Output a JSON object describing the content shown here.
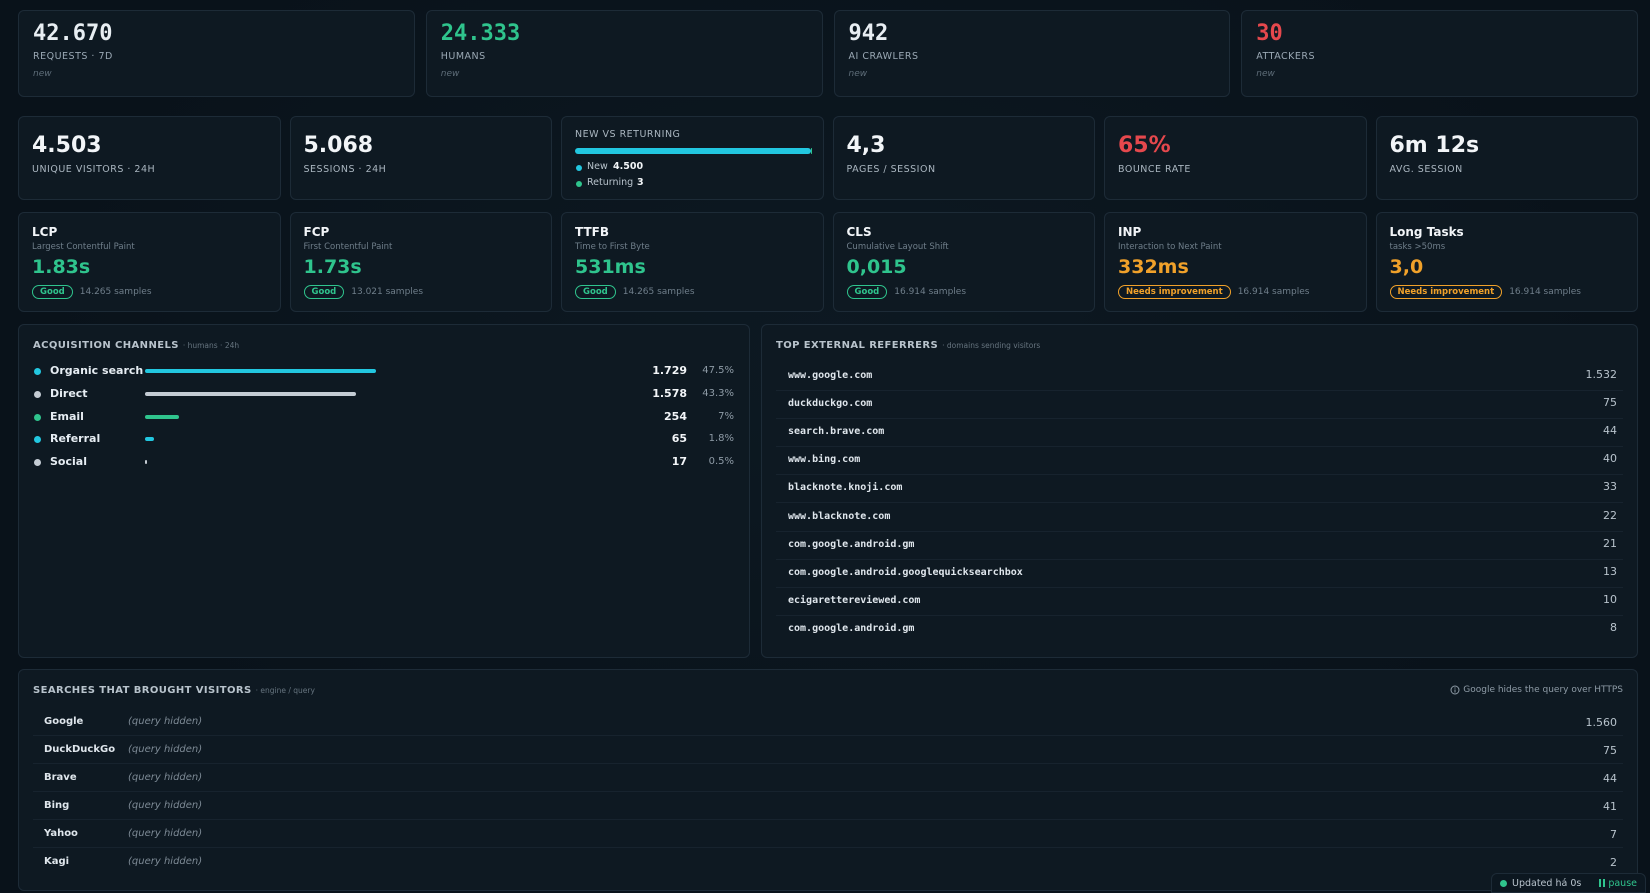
{
  "top_stats": [
    {
      "value": "42.670",
      "label": "REQUESTS · 7D",
      "note": "new",
      "color": "#e8eef3"
    },
    {
      "value": "24.333",
      "label": "HUMANS",
      "note": "new",
      "color": "#2fc48d"
    },
    {
      "value": "942",
      "label": "AI CRAWLERS",
      "note": "new",
      "color": "#e8eef3"
    },
    {
      "value": "30",
      "label": "ATTACKERS",
      "note": "new",
      "color": "#e5484d"
    }
  ],
  "kpis": [
    {
      "value": "4.503",
      "label": "UNIQUE VISITORS · 24H",
      "color": "#f2f5f8"
    },
    {
      "value": "5.068",
      "label": "SESSIONS · 24H",
      "color": "#f2f5f8"
    },
    {
      "title": "NEW VS RETURNING",
      "items": [
        {
          "label": "New",
          "value": {
            "value": 4500,
            "label": "4.500"
          },
          "color": "#22c7e0"
        },
        {
          "label": "Returning",
          "value": {
            "value": 3,
            "label": "3"
          },
          "color": "#2fc48d"
        }
      ]
    },
    {
      "value": "4,3",
      "label": "PAGES / SESSION",
      "color": "#f2f5f8"
    },
    {
      "value": "65%",
      "label": "BOUNCE RATE",
      "color": "#e5484d"
    },
    {
      "value": "6m 12s",
      "label": "AVG. SESSION",
      "color": "#f2f5f8"
    }
  ],
  "vitals": [
    {
      "name": "LCP",
      "description": "Largest Contentful Paint",
      "value": "1.83s",
      "badge": "Good",
      "samples": "14.265 samples",
      "color": "#2fc48d"
    },
    {
      "name": "FCP",
      "description": "First Contentful Paint",
      "value": "1.73s",
      "badge": "Good",
      "samples": "13.021 samples",
      "color": "#2fc48d"
    },
    {
      "name": "TTFB",
      "description": "Time to First Byte",
      "value": "531ms",
      "badge": "Good",
      "samples": "14.265 samples",
      "color": "#2fc48d"
    },
    {
      "name": "CLS",
      "description": "Cumulative Layout Shift",
      "value": "0,015",
      "badge": "Good",
      "samples": "16.914 samples",
      "color": "#2fc48d"
    },
    {
      "name": "INP",
      "description": "Interaction to Next Paint",
      "value": "332ms",
      "badge": "Needs improvement",
      "samples": "16.914 samples",
      "color": "#f0a12a"
    },
    {
      "name": "Long Tasks",
      "description": "tasks >50ms",
      "value": "3,0",
      "badge": "Needs improvement",
      "samples": "16.914 samples",
      "color": "#f0a12a"
    }
  ],
  "acquisition": {
    "title": "ACQUISITION CHANNELS",
    "subtitle": "· humans · 24h",
    "rows": [
      {
        "name": "Organic search",
        "color": "#22c7e0",
        "count": "1.729",
        "share": {
          "value": 47.5,
          "label": "47.5%"
        }
      },
      {
        "name": "Direct",
        "color": "#c4ccd4",
        "count": "1.578",
        "share": {
          "value": 43.3,
          "label": "43.3%"
        }
      },
      {
        "name": "Email",
        "color": "#2fc48d",
        "count": "254",
        "share": {
          "value": 7,
          "label": "7%"
        }
      },
      {
        "name": "Referral",
        "color": "#22c7e0",
        "count": "65",
        "share": {
          "value": 1.8,
          "label": "1.8%"
        }
      },
      {
        "name": "Social",
        "color": "#c4ccd4",
        "count": "17",
        "share": {
          "value": 0.5,
          "label": "0.5%"
        }
      }
    ]
  },
  "referrers": {
    "title": "TOP EXTERNAL REFERRERS",
    "subtitle": "· domains sending visitors",
    "rows": [
      {
        "domain": "www.google.com",
        "count": "1.532"
      },
      {
        "domain": "duckduckgo.com",
        "count": "75"
      },
      {
        "domain": "search.brave.com",
        "count": "44"
      },
      {
        "domain": "www.bing.com",
        "count": "40"
      },
      {
        "domain": "blacknote.knoji.com",
        "count": "33"
      },
      {
        "domain": "www.blacknote.com",
        "count": "22"
      },
      {
        "domain": "com.google.android.gm",
        "count": "21"
      },
      {
        "domain": "com.google.android.googlequicksearchbox",
        "count": "13"
      },
      {
        "domain": "ecigarettereviewed.com",
        "count": "10"
      },
      {
        "domain": "com.google.android.gm",
        "count": "8"
      }
    ]
  },
  "searches": {
    "title": "SEARCHES THAT BROUGHT VISITORS",
    "subtitle": "· engine / query",
    "note": "Google hides the query over HTTPS",
    "rows": [
      {
        "engine": "Google",
        "query": "(query hidden)",
        "count": "1.560"
      },
      {
        "engine": "DuckDuckGo",
        "query": "(query hidden)",
        "count": "75"
      },
      {
        "engine": "Brave",
        "query": "(query hidden)",
        "count": "44"
      },
      {
        "engine": "Bing",
        "query": "(query hidden)",
        "count": "41"
      },
      {
        "engine": "Yahoo",
        "query": "(query hidden)",
        "count": "7"
      },
      {
        "engine": "Kagi",
        "query": "(query hidden)",
        "count": "2"
      }
    ]
  },
  "status": {
    "text": "Updated há 0s",
    "action": "pause"
  }
}
